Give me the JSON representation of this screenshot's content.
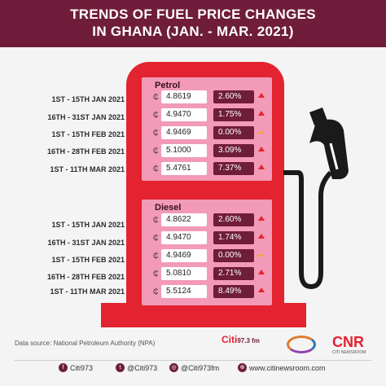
{
  "header": {
    "title_line1": "TRENDS OF FUEL PRICE CHANGES",
    "title_line2": "IN GHANA (JAN. - MAR. 2021)"
  },
  "currency_symbol": "₵",
  "petrol": {
    "title": "Petrol",
    "rows": [
      {
        "period": "1ST - 15TH JAN 2021",
        "price": "4.8619",
        "change": "2.60%",
        "trend": "up"
      },
      {
        "period": "16TH - 31ST JAN 2021",
        "price": "4.9470",
        "change": "1.75%",
        "trend": "up"
      },
      {
        "period": "1ST - 15TH FEB 2021",
        "price": "4.9469",
        "change": "0.00%",
        "trend": "flat"
      },
      {
        "period": "16TH - 28TH FEB 2021",
        "price": "5.1000",
        "change": "3.09%",
        "trend": "up"
      },
      {
        "period": "1ST - 11TH MAR 2021",
        "price": "5.4761",
        "change": "7.37%",
        "trend": "up"
      }
    ]
  },
  "diesel": {
    "title": "Diesel",
    "rows": [
      {
        "period": "1ST - 15TH JAN 2021",
        "price": "4.8622",
        "change": "2.60%",
        "trend": "up"
      },
      {
        "period": "16TH - 31ST JAN 2021",
        "price": "4.9470",
        "change": "1.74%",
        "trend": "up"
      },
      {
        "period": "1ST - 15TH FEB 2021",
        "price": "4.9469",
        "change": "0.00%",
        "trend": "flat"
      },
      {
        "period": "16TH - 28TH FEB 2021",
        "price": "5.0810",
        "change": "2.71%",
        "trend": "up"
      },
      {
        "period": "1ST - 11TH MAR 2021",
        "price": "5.5124",
        "change": "8.49%",
        "trend": "up"
      }
    ]
  },
  "footer": {
    "source": "Data source: National Petroleum Authority (NPA)",
    "citi_logo": "Citi",
    "citi_freq": "97.3 fm",
    "cnr_logo": "CNR",
    "cnr_sub": "CITI NEWSROOM",
    "social": [
      {
        "icon": "facebook-icon",
        "glyph": "f",
        "text": "Citi973"
      },
      {
        "icon": "twitter-icon",
        "glyph": "t",
        "text": "@Citi973"
      },
      {
        "icon": "instagram-icon",
        "glyph": "◎",
        "text": "@Citi973fm"
      },
      {
        "icon": "web-icon",
        "glyph": "⊕",
        "text": "www.citinewsroom.com"
      }
    ]
  },
  "colors": {
    "brand": "#6f1d3a",
    "pump": "#e3232f",
    "panel": "#f29ab8",
    "flat": "#f5a623"
  }
}
